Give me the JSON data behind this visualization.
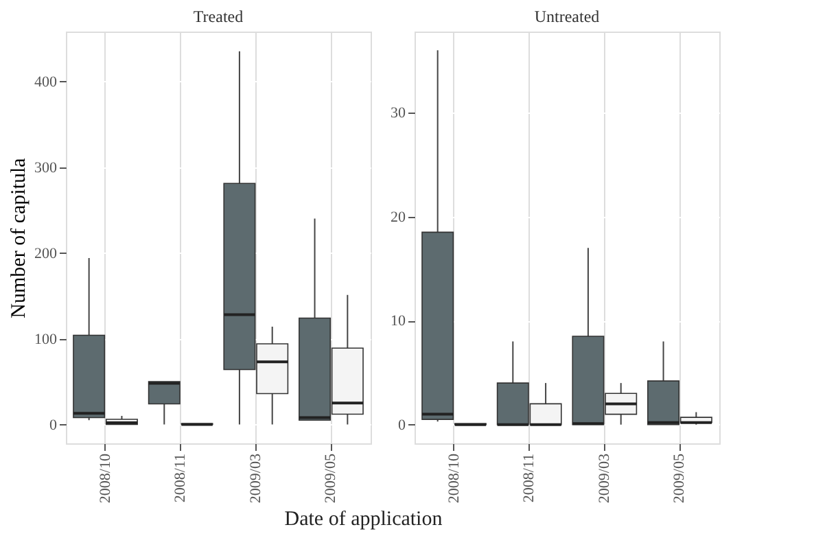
{
  "chart_data": [
    {
      "type": "box",
      "title": "Treated",
      "ylabel": "Number of capitula",
      "xlabel": "Date of application",
      "categories": [
        "2008/10",
        "2008/11",
        "2009/03",
        "2009/05"
      ],
      "ylim": [
        -22,
        458
      ],
      "yticks": [
        0,
        100,
        200,
        300,
        400
      ],
      "grid": true,
      "series": [
        {
          "color": "#5d6b6f",
          "boxes": [
            {
              "low": 5,
              "q1": 8,
              "median": 13,
              "q3": 104,
              "high": 194
            },
            {
              "low": 0,
              "q1": 24,
              "median": 48,
              "q3": 50,
              "high": 50
            },
            {
              "low": 0,
              "q1": 64,
              "median": 128,
              "q3": 281,
              "high": 435
            },
            {
              "low": 5,
              "q1": 5,
              "median": 8,
              "q3": 124,
              "high": 240
            }
          ]
        },
        {
          "color": "#f4f4f4",
          "boxes": [
            {
              "low": 0,
              "q1": 0,
              "median": 2,
              "q3": 6,
              "high": 10
            },
            {
              "low": 0,
              "q1": 0,
              "median": 0,
              "q3": 1,
              "high": 1
            },
            {
              "low": 0,
              "q1": 36,
              "median": 73,
              "q3": 94,
              "high": 114
            },
            {
              "low": 0,
              "q1": 12,
              "median": 25,
              "q3": 89,
              "high": 151
            }
          ]
        }
      ]
    },
    {
      "type": "box",
      "title": "Untreated",
      "categories": [
        "2008/10",
        "2008/11",
        "2009/03",
        "2009/05"
      ],
      "ylim": [
        -1.8,
        37.8
      ],
      "yticks": [
        0,
        10,
        20,
        30
      ],
      "grid": true,
      "series": [
        {
          "color": "#5d6b6f",
          "boxes": [
            {
              "low": 0.3,
              "q1": 0.5,
              "median": 1,
              "q3": 18.5,
              "high": 36
            },
            {
              "low": 0,
              "q1": 0,
              "median": 0,
              "q3": 4,
              "high": 8
            },
            {
              "low": 0,
              "q1": 0,
              "median": 0.1,
              "q3": 8.5,
              "high": 17
            },
            {
              "low": 0,
              "q1": 0,
              "median": 0.2,
              "q3": 4.2,
              "high": 8
            }
          ]
        },
        {
          "color": "#f4f4f4",
          "boxes": [
            {
              "low": 0,
              "q1": 0,
              "median": 0,
              "q3": 0.1,
              "high": 0.1
            },
            {
              "low": 0,
              "q1": 0,
              "median": 0,
              "q3": 2,
              "high": 4
            },
            {
              "low": 0,
              "q1": 1,
              "median": 2,
              "q3": 3,
              "high": 4
            },
            {
              "low": 0,
              "q1": 0.2,
              "median": 0.2,
              "q3": 0.7,
              "high": 1.2
            }
          ]
        }
      ]
    }
  ]
}
